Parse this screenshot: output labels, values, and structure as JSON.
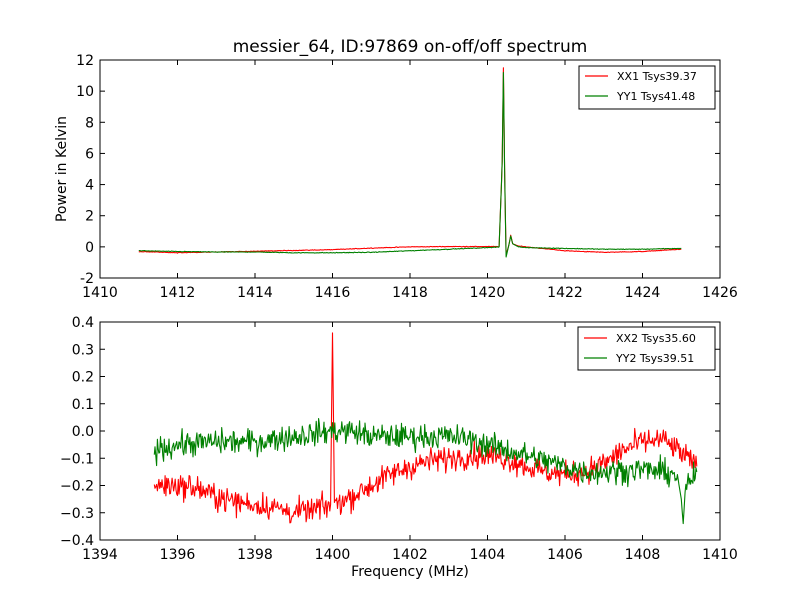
{
  "chart_data": [
    {
      "type": "line",
      "title": "messier_64, ID:97869 on-off/off spectrum",
      "xlabel": "",
      "ylabel": "Power in Kelvin",
      "xlim": [
        1410,
        1426
      ],
      "ylim": [
        -2,
        12
      ],
      "xticks": [
        1410,
        1412,
        1414,
        1416,
        1418,
        1420,
        1422,
        1424,
        1426
      ],
      "yticks": [
        -2,
        0,
        2,
        4,
        6,
        8,
        10,
        12
      ],
      "legend_position": "top-right",
      "grid": false,
      "noise": 0.02,
      "series": [
        {
          "name": "XX1 Tsys39.37",
          "color": "#ff0000",
          "points": [
            [
              1411.0,
              -0.3
            ],
            [
              1412.0,
              -0.38
            ],
            [
              1413.0,
              -0.33
            ],
            [
              1414.0,
              -0.28
            ],
            [
              1415.0,
              -0.23
            ],
            [
              1416.0,
              -0.18
            ],
            [
              1417.0,
              -0.08
            ],
            [
              1418.0,
              0.0
            ],
            [
              1419.0,
              0.02
            ],
            [
              1420.0,
              0.02
            ],
            [
              1420.3,
              0.02
            ],
            [
              1420.38,
              5.5
            ],
            [
              1420.41,
              11.5
            ],
            [
              1420.44,
              5.0
            ],
            [
              1420.48,
              -0.5
            ],
            [
              1420.55,
              0.1
            ],
            [
              1420.6,
              0.75
            ],
            [
              1420.65,
              0.2
            ],
            [
              1420.8,
              0.05
            ],
            [
              1421.0,
              0.0
            ],
            [
              1422.0,
              -0.25
            ],
            [
              1423.0,
              -0.35
            ],
            [
              1424.0,
              -0.3
            ],
            [
              1425.0,
              -0.15
            ]
          ]
        },
        {
          "name": "YY1 Tsys41.48",
          "color": "#008000",
          "points": [
            [
              1411.0,
              -0.25
            ],
            [
              1412.0,
              -0.3
            ],
            [
              1413.0,
              -0.33
            ],
            [
              1414.0,
              -0.33
            ],
            [
              1415.0,
              -0.38
            ],
            [
              1416.0,
              -0.38
            ],
            [
              1417.0,
              -0.35
            ],
            [
              1418.0,
              -0.25
            ],
            [
              1419.0,
              -0.15
            ],
            [
              1420.0,
              -0.05
            ],
            [
              1420.3,
              0.0
            ],
            [
              1420.38,
              5.5
            ],
            [
              1420.41,
              11.2
            ],
            [
              1420.44,
              5.0
            ],
            [
              1420.48,
              -0.65
            ],
            [
              1420.55,
              0.1
            ],
            [
              1420.6,
              0.7
            ],
            [
              1420.65,
              0.2
            ],
            [
              1420.8,
              0.0
            ],
            [
              1421.0,
              -0.05
            ],
            [
              1422.0,
              -0.1
            ],
            [
              1423.0,
              -0.15
            ],
            [
              1424.0,
              -0.15
            ],
            [
              1425.0,
              -0.1
            ]
          ]
        }
      ]
    },
    {
      "type": "line",
      "title": "",
      "xlabel": "Frequency (MHz)",
      "ylabel": "",
      "xlim": [
        1394,
        1410
      ],
      "ylim": [
        -0.4,
        0.4
      ],
      "xticks": [
        1394,
        1396,
        1398,
        1400,
        1402,
        1404,
        1406,
        1408,
        1410
      ],
      "yticks": [
        -0.4,
        -0.3,
        -0.2,
        -0.1,
        0.0,
        0.1,
        0.2,
        0.3,
        0.4
      ],
      "yticklabels": [
        "−0.4",
        "−0.3",
        "−0.2",
        "−0.1",
        "0.0",
        "0.1",
        "0.2",
        "0.3",
        "0.4"
      ],
      "legend_position": "top-right",
      "grid": false,
      "noise": 0.045,
      "series": [
        {
          "name": "XX2 Tsys35.60",
          "color": "#ff0000",
          "points": [
            [
              1395.4,
              -0.2
            ],
            [
              1396.0,
              -0.2
            ],
            [
              1396.5,
              -0.21
            ],
            [
              1397.0,
              -0.24
            ],
            [
              1397.5,
              -0.26
            ],
            [
              1398.0,
              -0.27
            ],
            [
              1398.5,
              -0.28
            ],
            [
              1399.0,
              -0.3
            ],
            [
              1399.5,
              -0.29
            ],
            [
              1399.95,
              -0.27
            ],
            [
              1400.0,
              0.36
            ],
            [
              1400.05,
              -0.27
            ],
            [
              1400.5,
              -0.24
            ],
            [
              1401.0,
              -0.2
            ],
            [
              1401.5,
              -0.16
            ],
            [
              1402.0,
              -0.13
            ],
            [
              1402.5,
              -0.11
            ],
            [
              1403.0,
              -0.1
            ],
            [
              1403.5,
              -0.09
            ],
            [
              1404.0,
              -0.09
            ],
            [
              1404.5,
              -0.1
            ],
            [
              1405.0,
              -0.13
            ],
            [
              1405.5,
              -0.15
            ],
            [
              1406.0,
              -0.16
            ],
            [
              1406.5,
              -0.15
            ],
            [
              1407.0,
              -0.12
            ],
            [
              1407.5,
              -0.07
            ],
            [
              1408.0,
              -0.04
            ],
            [
              1408.5,
              -0.03
            ],
            [
              1409.0,
              -0.08
            ],
            [
              1409.4,
              -0.13
            ]
          ]
        },
        {
          "name": "YY2 Tsys39.51",
          "color": "#008000",
          "points": [
            [
              1395.4,
              -0.07
            ],
            [
              1396.0,
              -0.05
            ],
            [
              1397.0,
              -0.04
            ],
            [
              1398.0,
              -0.04
            ],
            [
              1399.0,
              -0.02
            ],
            [
              1400.0,
              0.0
            ],
            [
              1400.5,
              0.0
            ],
            [
              1401.0,
              -0.02
            ],
            [
              1402.0,
              -0.02
            ],
            [
              1403.0,
              -0.02
            ],
            [
              1403.5,
              -0.03
            ],
            [
              1404.0,
              -0.05
            ],
            [
              1405.0,
              -0.09
            ],
            [
              1406.0,
              -0.13
            ],
            [
              1406.5,
              -0.15
            ],
            [
              1407.0,
              -0.15
            ],
            [
              1408.0,
              -0.14
            ],
            [
              1408.5,
              -0.15
            ],
            [
              1408.9,
              -0.16
            ],
            [
              1409.0,
              -0.25
            ],
            [
              1409.05,
              -0.34
            ],
            [
              1409.1,
              -0.22
            ],
            [
              1409.4,
              -0.15
            ]
          ]
        }
      ]
    }
  ]
}
